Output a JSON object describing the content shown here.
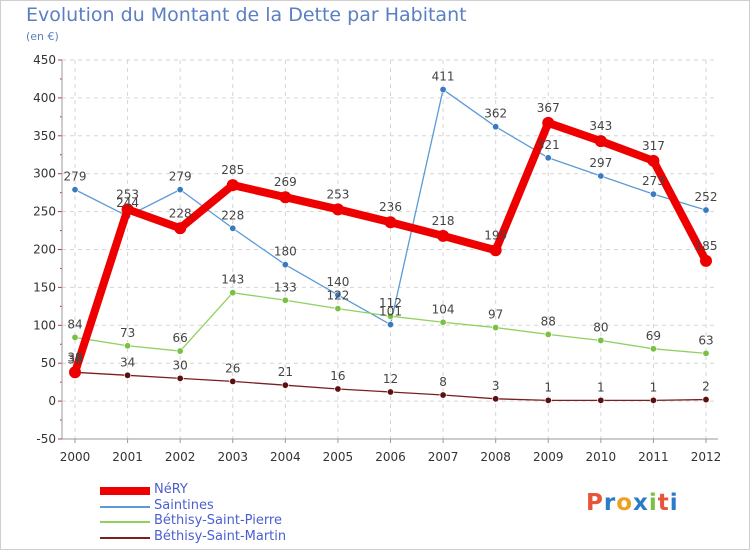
{
  "title": "Evolution du Montant de la Dette par Habitant",
  "subtitle": "(en €)",
  "brand": {
    "letters": [
      "P",
      "r",
      "o",
      "x",
      "i",
      "t",
      "i"
    ],
    "colors": [
      "#e8563a",
      "#2c7ac9",
      "#f0a020",
      "#2c7ac9",
      "#7ac143",
      "#e8563a",
      "#2c7ac9"
    ]
  },
  "chart_data": {
    "type": "line",
    "x": [
      "2000",
      "2001",
      "2002",
      "2003",
      "2004",
      "2005",
      "2006",
      "2007",
      "2008",
      "2009",
      "2010",
      "2011",
      "2012"
    ],
    "ylim": [
      -50,
      450
    ],
    "yticks": [
      -50,
      0,
      50,
      100,
      150,
      200,
      250,
      300,
      350,
      400,
      450
    ],
    "grid": true,
    "legend_position": "bottom-left",
    "series": [
      {
        "name": "NéRY",
        "color": "#ee0000",
        "values": [
          38,
          253,
          228,
          285,
          269,
          253,
          236,
          218,
          199,
          367,
          343,
          317,
          185
        ],
        "labels": [
          "38",
          "253",
          "228",
          "285",
          "269",
          "253",
          "236",
          "218",
          "199",
          "367",
          "343",
          "317",
          "185"
        ]
      },
      {
        "name": "Saintines",
        "color": "#5b9bd5",
        "values": [
          279,
          244,
          279,
          228,
          180,
          140,
          101,
          411,
          362,
          321,
          297,
          273,
          252
        ],
        "labels": [
          "279",
          "244",
          "279",
          "228",
          "180",
          "140",
          "101",
          "411",
          "362",
          "321",
          "297",
          "273",
          "252"
        ]
      },
      {
        "name": "Béthisy-Saint-Pierre",
        "color": "#90d060",
        "values": [
          84,
          73,
          66,
          143,
          133,
          122,
          112,
          104,
          97,
          88,
          80,
          69,
          63
        ],
        "labels": [
          "84",
          "73",
          "66",
          "143",
          "133",
          "122",
          "112",
          "104",
          "97",
          "88",
          "80",
          "69",
          "63"
        ]
      },
      {
        "name": "Béthisy-Saint-Martin",
        "color": "#7a2020",
        "values": [
          38,
          34,
          30,
          26,
          21,
          16,
          12,
          8,
          3,
          1,
          1,
          1,
          2
        ],
        "labels": [
          "38",
          "34",
          "30",
          "26",
          "21",
          "16",
          "12",
          "8",
          "3",
          "1",
          "1",
          "1",
          "2"
        ]
      }
    ]
  }
}
